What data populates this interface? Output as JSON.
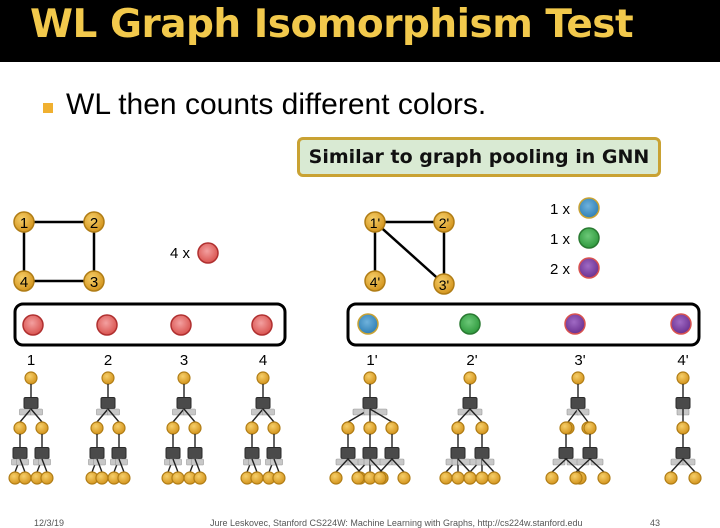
{
  "slide": {
    "title": "WL Graph Isomorphism Test",
    "bullet": "WL then counts different colors.",
    "callout": "Similar to graph pooling in GNN"
  },
  "colors": {
    "title": "#f2c94c",
    "node": "#e4a52a",
    "red": "#d9534f",
    "blue": "#3d8fc4",
    "green": "#3aa84a",
    "purple": "#7b3fa0",
    "callout_bg": "#d9ead3",
    "callout_border": "#c9a233"
  },
  "graph_left": {
    "nodes": [
      "1",
      "2",
      "3",
      "4"
    ],
    "count_label": "4 x",
    "tree_labels": [
      "1",
      "2",
      "3",
      "4"
    ]
  },
  "graph_right": {
    "nodes": [
      "1'",
      "2'",
      "3'",
      "4'"
    ],
    "counts": [
      {
        "label": "1 x",
        "color": "blue"
      },
      {
        "label": "1 x",
        "color": "green"
      },
      {
        "label": "2 x",
        "color": "purple"
      }
    ],
    "tree_labels": [
      "1'",
      "2'",
      "3'",
      "4'"
    ]
  },
  "footer": {
    "date": "12/3/19",
    "credit": "Jure Leskovec, Stanford CS224W: Machine Learning with Graphs, http://cs224w.stanford.edu",
    "page": "43"
  }
}
